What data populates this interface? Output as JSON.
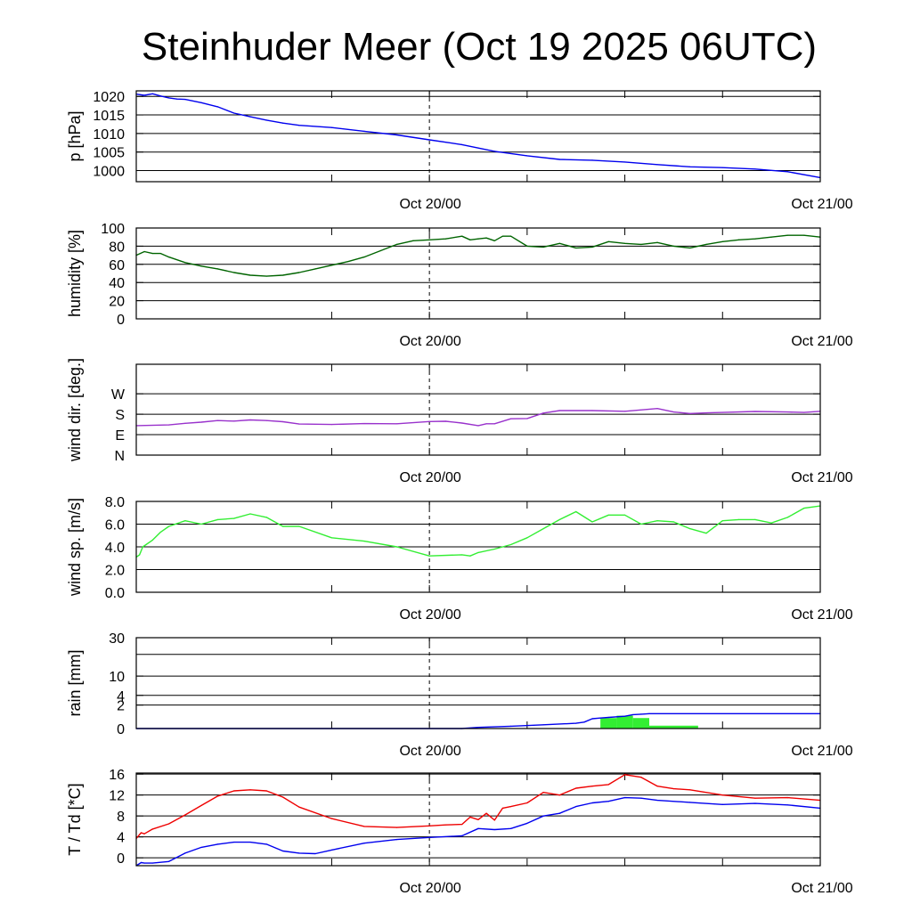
{
  "title": "Steinhuder Meer (Oct 19 2025 06UTC)",
  "x_axis": {
    "start": 0,
    "end": 42,
    "unit": "hours since Oct 19 06UTC",
    "ticks": [
      {
        "x": 18,
        "label": "Oct 20/00"
      },
      {
        "x": 42,
        "label": "Oct 21/00"
      }
    ],
    "minor_ticks": [
      12,
      18,
      24,
      30,
      36
    ],
    "dashed_marker": 18
  },
  "colors": {
    "pressure": "#0000ee",
    "humidity": "#006400",
    "wind_dir": "#9932cc",
    "wind_speed": "#33ee33",
    "rain_total": "#0000ee",
    "rain_bars": "#33ee33",
    "temperature": "#ee0000",
    "dewpoint": "#0000ee"
  },
  "chart_data": [
    {
      "id": "pressure",
      "type": "line",
      "ylabel": "p [hPa]",
      "ylim": [
        997,
        1021.5
      ],
      "yticks": [
        {
          "v": 1000,
          "label": "1000"
        },
        {
          "v": 1005,
          "label": "1005"
        },
        {
          "v": 1010,
          "label": "1010"
        },
        {
          "v": 1015,
          "label": "1015"
        },
        {
          "v": 1020,
          "label": "1020"
        }
      ],
      "series": [
        {
          "name": "pressure",
          "color": "pressure",
          "x": [
            0,
            0.5,
            1,
            1.5,
            2,
            2.5,
            3,
            4,
            5,
            6,
            7,
            8,
            9,
            10,
            12,
            14,
            16,
            18,
            20,
            22,
            24,
            26,
            28,
            30,
            32,
            34,
            36,
            38,
            40,
            42
          ],
          "values": [
            1020.6,
            1020.3,
            1020.7,
            1020.1,
            1019.6,
            1019.3,
            1019.2,
            1018.3,
            1017.2,
            1015.5,
            1014.5,
            1013.6,
            1012.8,
            1012.2,
            1011.6,
            1010.6,
            1009.6,
            1008.3,
            1007.0,
            1005.2,
            1004.0,
            1003.0,
            1002.8,
            1002.3,
            1001.6,
            1001.0,
            1000.8,
            1000.4,
            999.7,
            998.1
          ]
        }
      ]
    },
    {
      "id": "humidity",
      "type": "line",
      "ylabel": "humidity [%]",
      "ylim": [
        0,
        100
      ],
      "yticks": [
        {
          "v": 0,
          "label": "0"
        },
        {
          "v": 20,
          "label": "20"
        },
        {
          "v": 40,
          "label": "40"
        },
        {
          "v": 60,
          "label": "60"
        },
        {
          "v": 80,
          "label": "80"
        },
        {
          "v": 100,
          "label": "100"
        }
      ],
      "series": [
        {
          "name": "humidity",
          "color": "humidity",
          "x": [
            0,
            0.5,
            1,
            1.5,
            2,
            3,
            4,
            5,
            6,
            7,
            8,
            9,
            10,
            11,
            12,
            13,
            14,
            15,
            16,
            17,
            18,
            19,
            20,
            20.5,
            21,
            21.5,
            22,
            22.5,
            23,
            24,
            25,
            26,
            27,
            28,
            29,
            30,
            31,
            32,
            33,
            34,
            35,
            36,
            37,
            38,
            39,
            40,
            41,
            42
          ],
          "values": [
            70,
            74,
            72,
            72,
            68,
            62,
            58,
            55,
            51,
            48,
            47,
            48,
            51,
            55,
            59,
            63,
            68,
            75,
            82,
            86,
            87,
            88,
            91,
            87,
            88,
            89,
            86,
            91,
            91,
            80,
            79,
            83,
            78,
            79,
            85,
            83,
            82,
            84,
            80,
            78,
            82,
            85,
            87,
            88,
            90,
            92,
            92,
            90
          ]
        }
      ]
    },
    {
      "id": "wind_dir",
      "type": "line",
      "ylabel": "wind dir. [deg.]",
      "ylim": [
        0,
        400
      ],
      "yticks": [
        {
          "v": 0,
          "label": "N"
        },
        {
          "v": 90,
          "label": "E"
        },
        {
          "v": 180,
          "label": "S"
        },
        {
          "v": 270,
          "label": "W"
        }
      ],
      "series": [
        {
          "name": "wind direction",
          "color": "wind_dir",
          "x": [
            0,
            2,
            3,
            4,
            5,
            6,
            7,
            8,
            9,
            10,
            12,
            14,
            16,
            18,
            19,
            20,
            21,
            21.5,
            22,
            23,
            24,
            25,
            26,
            28,
            30,
            32,
            33,
            34,
            35,
            36,
            38,
            40,
            41,
            42
          ],
          "values": [
            130,
            133,
            140,
            145,
            152,
            150,
            155,
            152,
            147,
            137,
            135,
            139,
            138,
            148,
            149,
            141,
            130,
            138,
            138,
            160,
            161,
            185,
            196,
            196,
            193,
            205,
            190,
            183,
            186,
            188,
            192,
            190,
            188,
            193
          ]
        }
      ]
    },
    {
      "id": "wind_speed",
      "type": "line",
      "ylabel": "wind sp. [m/s]",
      "ylim": [
        0,
        8
      ],
      "yticks": [
        {
          "v": 0,
          "label": "0.0"
        },
        {
          "v": 2,
          "label": "2.0"
        },
        {
          "v": 4,
          "label": "4.0"
        },
        {
          "v": 6,
          "label": "6.0"
        },
        {
          "v": 8,
          "label": "8.0"
        }
      ],
      "series": [
        {
          "name": "wind speed",
          "color": "wind_speed",
          "x": [
            0,
            0.2,
            0.4,
            0.6,
            1,
            1.5,
            2,
            3,
            4,
            5,
            6,
            7,
            8,
            9,
            10,
            12,
            14,
            16,
            18,
            20,
            20.5,
            21,
            22,
            23,
            24,
            25,
            26,
            27,
            28,
            29,
            30,
            31,
            32,
            33,
            34,
            35,
            36,
            37,
            38,
            39,
            40,
            41,
            42
          ],
          "values": [
            3.1,
            3.3,
            4.0,
            4.2,
            4.6,
            5.3,
            5.8,
            6.3,
            6.0,
            6.4,
            6.5,
            6.9,
            6.6,
            5.8,
            5.8,
            4.8,
            4.5,
            4.0,
            3.2,
            3.3,
            3.2,
            3.5,
            3.8,
            4.2,
            4.8,
            5.6,
            6.4,
            7.1,
            6.2,
            6.8,
            6.8,
            6.0,
            6.3,
            6.2,
            5.6,
            5.2,
            6.3,
            6.4,
            6.4,
            6.1,
            6.6,
            7.4,
            7.6
          ]
        }
      ]
    },
    {
      "id": "rain",
      "type": "bar+line",
      "ylabel": "rain [mm]",
      "ylim": [
        0,
        30
      ],
      "scale": "sqrt",
      "yticks": [
        {
          "v": 0,
          "label": "0"
        },
        {
          "v": 2,
          "label": "2"
        },
        {
          "v": 4,
          "label": "4"
        },
        {
          "v": 10,
          "label": "10"
        },
        {
          "v": 30,
          "label": "30"
        }
      ],
      "gridlines": [
        0,
        2,
        4,
        10,
        20,
        30
      ],
      "bars": {
        "name": "rain per interval",
        "color": "rain_bars",
        "x_from": [
          28.5,
          29.5,
          30.5,
          31.5
        ],
        "x_to": [
          29.5,
          30.5,
          31.5,
          34.5
        ],
        "values": [
          0.4,
          0.6,
          0.4,
          0.03
        ]
      },
      "series": [
        {
          "name": "accumulated rain",
          "color": "rain_total",
          "x": [
            0,
            20,
            21,
            23,
            25,
            27,
            27.5,
            28,
            28.5,
            29,
            30,
            30.5,
            31,
            31.5,
            42
          ],
          "values": [
            0,
            0,
            0.005,
            0.02,
            0.05,
            0.1,
            0.15,
            0.35,
            0.4,
            0.45,
            0.55,
            0.7,
            0.75,
            0.8,
            0.8
          ]
        }
      ]
    },
    {
      "id": "temperature",
      "type": "line",
      "ylabel": "T / Td [*C]",
      "ylim": [
        -1.5,
        16.2
      ],
      "yticks": [
        {
          "v": 0,
          "label": "0"
        },
        {
          "v": 4,
          "label": "4"
        },
        {
          "v": 8,
          "label": "8"
        },
        {
          "v": 12,
          "label": "12"
        },
        {
          "v": 16,
          "label": "16"
        }
      ],
      "series": [
        {
          "name": "T",
          "color": "temperature",
          "x": [
            0,
            0.3,
            0.5,
            1,
            2,
            3,
            4,
            5,
            6,
            7,
            8,
            9,
            10,
            12,
            14,
            16,
            18,
            19,
            20,
            20.5,
            21,
            21.5,
            22,
            22.5,
            23,
            24,
            25,
            26,
            27,
            28,
            29,
            30,
            31,
            32,
            33,
            34,
            36,
            38,
            40,
            42
          ],
          "values": [
            3.7,
            4.8,
            4.6,
            5.5,
            6.5,
            8.2,
            10.0,
            11.8,
            12.8,
            13.0,
            12.8,
            11.6,
            9.7,
            7.5,
            6.0,
            5.8,
            6.1,
            6.3,
            6.4,
            7.8,
            7.3,
            8.5,
            7.2,
            9.5,
            9.8,
            10.5,
            12.5,
            12.0,
            13.3,
            13.7,
            14.0,
            15.9,
            15.4,
            13.7,
            13.2,
            13.0,
            12.0,
            11.4,
            11.5,
            11.0
          ]
        },
        {
          "name": "Td",
          "color": "dewpoint",
          "x": [
            0,
            0.3,
            0.5,
            1,
            2,
            3,
            4,
            5,
            6,
            7,
            8,
            9,
            10,
            11,
            12,
            14,
            16,
            18,
            20,
            21,
            22,
            23,
            24,
            25,
            26,
            27,
            28,
            29,
            30,
            31,
            32,
            34,
            36,
            38,
            40,
            42
          ],
          "values": [
            -1.5,
            -0.9,
            -1.0,
            -1.0,
            -0.7,
            0.9,
            2.0,
            2.6,
            3.0,
            3.0,
            2.6,
            1.3,
            0.9,
            0.8,
            1.5,
            2.8,
            3.5,
            3.9,
            4.2,
            5.6,
            5.4,
            5.6,
            6.6,
            8.0,
            8.5,
            9.8,
            10.5,
            10.8,
            11.5,
            11.4,
            11.0,
            10.6,
            10.2,
            10.4,
            10.1,
            9.5
          ]
        }
      ]
    }
  ]
}
